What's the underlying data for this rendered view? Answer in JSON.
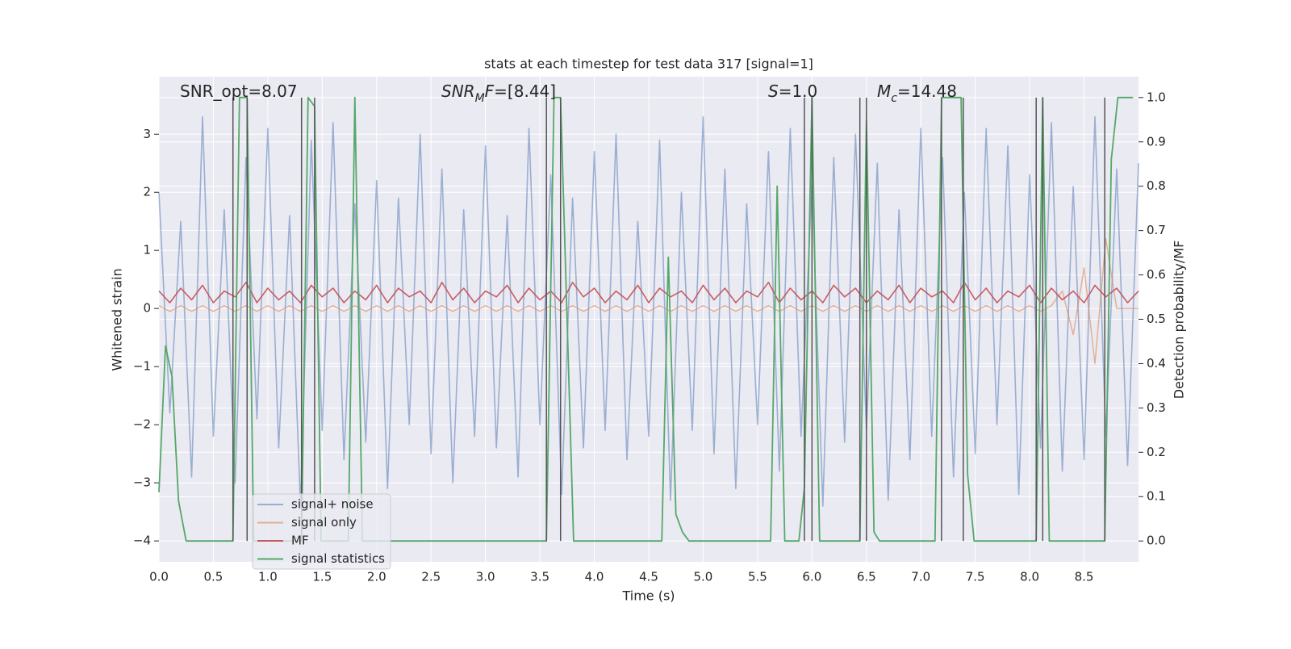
{
  "chart_data": {
    "type": "line",
    "title": "stats at each timestep for test data 317 [signal=1]",
    "x_label": "Time (s)",
    "y_label": "Whitened strain",
    "y2_label": "Detection probability/MF",
    "annotations": [
      [
        {
          "text": "SNR_opt=8.07",
          "style": "normal"
        }
      ],
      [
        {
          "text": "SNR",
          "style": "italic"
        },
        {
          "text": "M",
          "style": "sub"
        },
        {
          "text": "F",
          "style": "italic"
        },
        {
          "text": "=[8.44]",
          "style": "normal"
        }
      ],
      [
        {
          "text": "S",
          "style": "italic"
        },
        {
          "text": "=1.0",
          "style": "normal"
        }
      ],
      [
        {
          "text": "M",
          "style": "italic"
        },
        {
          "text": "c",
          "style": "sub"
        },
        {
          "text": "=14.48",
          "style": "normal"
        }
      ]
    ],
    "xlim": [
      0,
      9.0
    ],
    "ylim": [
      -4.36,
      3.99
    ],
    "y2lim": [
      -0.047,
      1.047
    ],
    "xticks": [
      {
        "value": 0,
        "label": "0.0"
      },
      0.5,
      {
        "value": 1,
        "label": "1.0"
      },
      1.5,
      {
        "value": 2,
        "label": "2.0"
      },
      2.5,
      {
        "value": 3,
        "label": "3.0"
      },
      3.5,
      {
        "value": 4,
        "label": "4.0"
      },
      4.5,
      {
        "value": 5,
        "label": "5.0"
      },
      5.5,
      {
        "value": 6,
        "label": "6.0"
      },
      6.5,
      {
        "value": 7,
        "label": "7.0"
      },
      7.5,
      {
        "value": 8,
        "label": "8.0"
      },
      8.5
    ],
    "yticks": [
      {
        "value": -4,
        "label": "−4"
      },
      {
        "value": -3,
        "label": "−3"
      },
      {
        "value": -2,
        "label": "−2"
      },
      {
        "value": -1,
        "label": "−1"
      },
      0,
      1,
      2,
      3
    ],
    "y2ticks": [
      {
        "value": 0,
        "label": "0.0"
      },
      0.1,
      0.2,
      0.3,
      0.4,
      0.5,
      0.6,
      0.7,
      0.8,
      0.9,
      {
        "value": 1,
        "label": "1.0"
      }
    ],
    "grid": true,
    "legend": "lower left",
    "x": [
      0,
      0.1,
      0.2,
      0.3,
      0.4,
      0.5,
      0.6,
      0.7,
      0.8,
      0.9,
      1,
      1.1,
      1.2,
      1.3,
      1.4,
      1.5,
      1.6,
      1.7,
      1.8,
      1.9,
      2,
      2.1,
      2.2,
      2.3,
      2.4,
      2.5,
      2.6,
      2.7,
      2.8,
      2.9,
      3,
      3.1,
      3.2,
      3.3,
      3.4,
      3.5,
      3.6,
      3.7,
      3.8,
      3.9,
      4,
      4.1,
      4.2,
      4.3,
      4.4,
      4.5,
      4.6,
      4.7,
      4.8,
      4.9,
      5,
      5.1,
      5.2,
      5.3,
      5.4,
      5.5,
      5.6,
      5.7,
      5.8,
      5.9,
      6,
      6.1,
      6.2,
      6.3,
      6.4,
      6.5,
      6.6,
      6.7,
      6.8,
      6.9,
      7,
      7.1,
      7.2,
      7.3,
      7.4,
      7.5,
      7.6,
      7.7,
      7.8,
      7.9,
      8,
      8.1,
      8.2,
      8.3,
      8.4,
      8.5,
      8.6,
      8.7,
      8.8,
      8.9,
      9
    ],
    "series": [
      {
        "name": "signal+ noise",
        "color": "#4c72b0",
        "values": [
          2.0,
          -1.8,
          1.5,
          -2.9,
          3.3,
          -2.2,
          1.7,
          -3.0,
          2.6,
          -1.9,
          3.1,
          -2.4,
          1.6,
          -3.4,
          2.9,
          -2.1,
          3.2,
          -2.6,
          1.8,
          -2.3,
          2.2,
          -3.1,
          1.9,
          -2.0,
          3.0,
          -2.5,
          2.4,
          -3.0,
          1.7,
          -2.2,
          2.8,
          -2.4,
          1.6,
          -2.9,
          3.1,
          -2.0,
          2.3,
          -3.2,
          1.9,
          -2.4,
          2.7,
          -2.1,
          3.0,
          -2.6,
          1.5,
          -2.2,
          2.9,
          -3.3,
          2.0,
          -2.1,
          3.3,
          -2.5,
          2.4,
          -3.1,
          1.8,
          -2.0,
          2.7,
          -2.8,
          3.1,
          -2.2,
          2.2,
          -3.4,
          2.6,
          -2.3,
          3.0,
          -2.1,
          2.5,
          -3.3,
          1.7,
          -2.6,
          3.1,
          -2.2,
          2.6,
          -2.9,
          2.0,
          -2.5,
          3.1,
          -2.0,
          2.8,
          -3.2,
          2.3,
          -2.4,
          3.2,
          -2.8,
          2.1,
          -2.6,
          3.3,
          -2.2,
          2.4,
          -2.7,
          2.5
        ]
      },
      {
        "name": "signal only",
        "color": "#dd8452",
        "values": [
          0.05,
          -0.05,
          0.05,
          -0.05,
          0.05,
          -0.05,
          0.05,
          -0.05,
          0.05,
          -0.05,
          0.05,
          -0.05,
          0.05,
          -0.05,
          0.05,
          -0.05,
          0.05,
          -0.05,
          0.05,
          -0.05,
          0.05,
          -0.05,
          0.05,
          -0.05,
          0.05,
          -0.05,
          0.05,
          -0.05,
          0.05,
          -0.05,
          0.05,
          -0.05,
          0.05,
          -0.05,
          0.05,
          -0.05,
          0.05,
          -0.05,
          0.05,
          -0.05,
          0.05,
          -0.05,
          0.05,
          -0.05,
          0.05,
          -0.05,
          0.05,
          -0.05,
          0.05,
          -0.05,
          0.05,
          -0.05,
          0.05,
          -0.05,
          0.05,
          -0.05,
          0.05,
          -0.05,
          0.05,
          -0.05,
          0.05,
          -0.05,
          0.05,
          -0.05,
          0.05,
          -0.05,
          0.05,
          -0.05,
          0.05,
          -0.05,
          0.05,
          -0.05,
          0.05,
          -0.05,
          0.05,
          -0.05,
          0.05,
          -0.05,
          0.05,
          -0.05,
          0.05,
          -0.05,
          0.05,
          0.3,
          -0.45,
          0.7,
          -0.95,
          1.2,
          0,
          0,
          0
        ]
      },
      {
        "name": "MF",
        "color": "#c44e52",
        "values": [
          0.3,
          0.1,
          0.35,
          0.15,
          0.4,
          0.1,
          0.3,
          0.2,
          0.45,
          0.1,
          0.35,
          0.15,
          0.3,
          0.1,
          0.4,
          0.2,
          0.35,
          0.1,
          0.3,
          0.15,
          0.4,
          0.1,
          0.35,
          0.2,
          0.3,
          0.1,
          0.45,
          0.15,
          0.35,
          0.1,
          0.3,
          0.2,
          0.4,
          0.1,
          0.35,
          0.15,
          0.3,
          0.1,
          0.45,
          0.2,
          0.35,
          0.1,
          0.3,
          0.15,
          0.4,
          0.1,
          0.35,
          0.2,
          0.3,
          0.1,
          0.4,
          0.15,
          0.35,
          0.1,
          0.3,
          0.2,
          0.45,
          0.1,
          0.35,
          0.15,
          0.3,
          0.1,
          0.4,
          0.2,
          0.35,
          0.1,
          0.3,
          0.15,
          0.4,
          0.1,
          0.35,
          0.2,
          0.3,
          0.1,
          0.45,
          0.15,
          0.35,
          0.1,
          0.3,
          0.2,
          0.4,
          0.1,
          0.35,
          0.15,
          0.3,
          0.1,
          0.4,
          0.2,
          0.35,
          0.1,
          0.3
        ]
      },
      {
        "name": "signal statistics",
        "color": "#55a868",
        "axis": "y2",
        "x": [
          0,
          0.06,
          0.12,
          0.18,
          0.25,
          0.68,
          0.74,
          0.81,
          0.87,
          1.31,
          1.37,
          1.43,
          1.49,
          1.74,
          1.8,
          1.87,
          3.56,
          3.63,
          3.69,
          3.81,
          4.62,
          4.68,
          4.75,
          4.81,
          4.87,
          5.62,
          5.68,
          5.75,
          5.88,
          5.93,
          6.0,
          6.07,
          6.44,
          6.5,
          6.57,
          6.62,
          7.13,
          7.19,
          7.37,
          7.43,
          7.49,
          8.06,
          8.12,
          8.18,
          8.69,
          8.75,
          8.81,
          8.95
        ],
        "values": [
          0.11,
          0.44,
          0.37,
          0.09,
          0,
          0,
          1,
          1,
          0,
          0,
          1,
          0.98,
          0,
          0,
          1,
          0,
          0,
          1,
          1,
          0,
          0,
          0.64,
          0.06,
          0.02,
          0,
          0,
          0.8,
          0,
          0,
          0.12,
          1,
          0,
          0,
          0.95,
          0.02,
          0,
          0,
          1,
          1,
          0.15,
          0,
          0,
          1,
          0,
          0,
          0.86,
          1,
          1
        ]
      }
    ],
    "vlines": [
      0.68,
      0.81,
      1.31,
      1.43,
      3.56,
      3.69,
      5.93,
      6.0,
      6.44,
      6.5,
      7.19,
      7.39,
      8.06,
      8.12,
      8.69
    ],
    "vline_color": "#555555"
  }
}
